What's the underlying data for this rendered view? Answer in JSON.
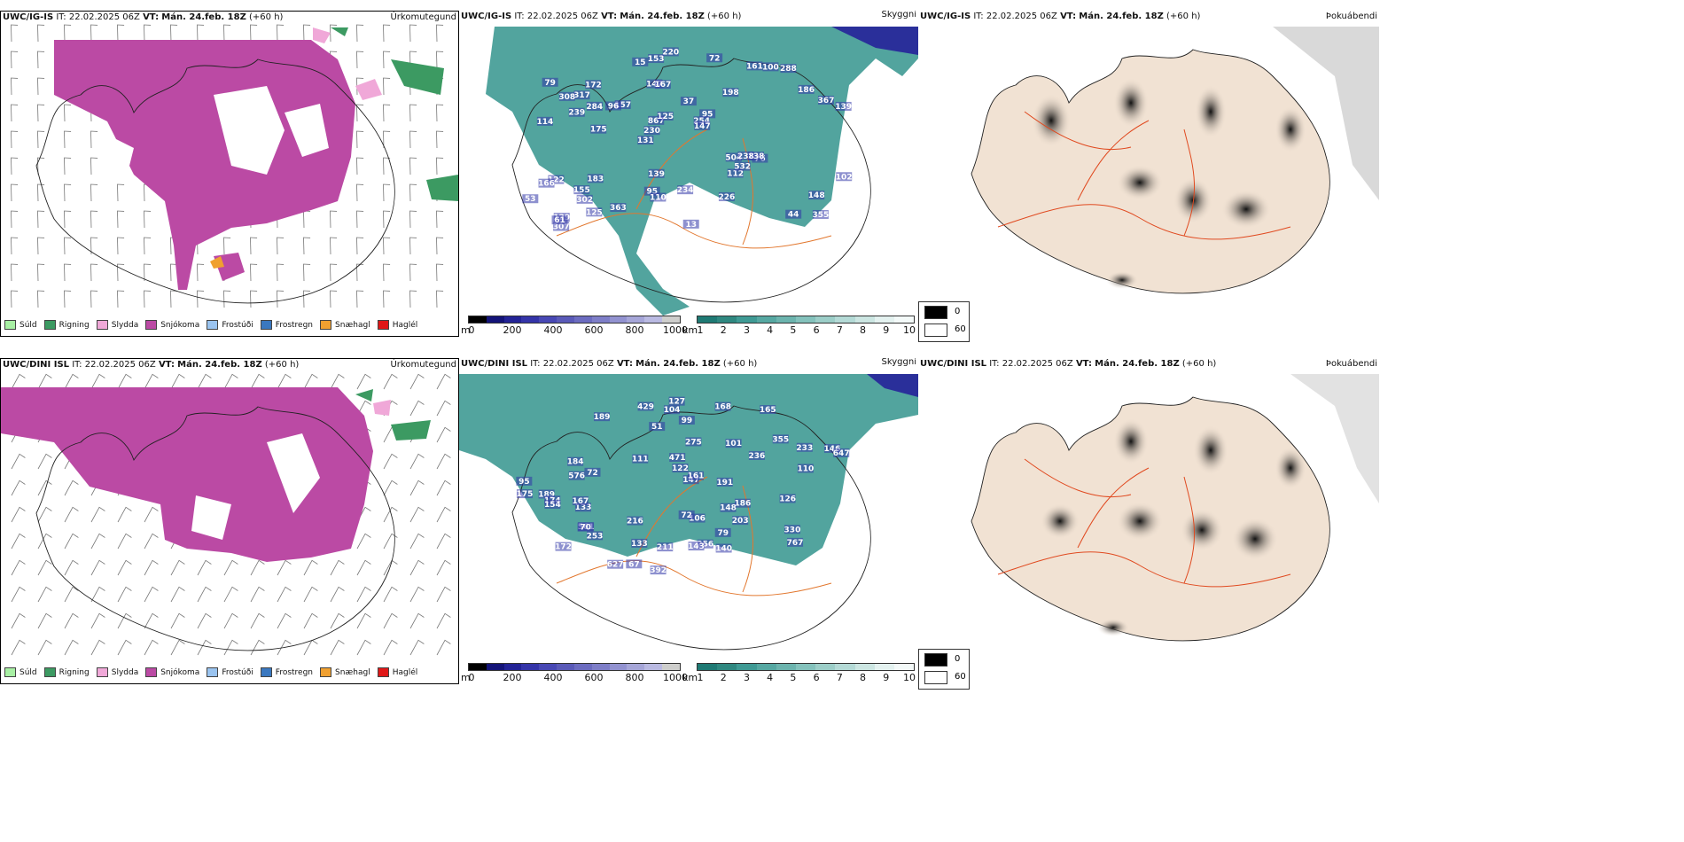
{
  "colors": {
    "precip_snow": "#bb4aa4",
    "precip_rain": "#3c9a62",
    "precip_drizzle": "#a8f0a4",
    "precip_sleet": "#f0a8d8",
    "precip_freezing_drizzle": "#9ac4f0",
    "precip_freezing_rain": "#3a78c0",
    "precip_graupel": "#f0a030",
    "precip_hail": "#e01818",
    "cloud_teal": "#3f9a94",
    "cloud_low_blue": "#3236a8",
    "road_orange": "#e2772e",
    "fog_land": "#f1e2d3"
  },
  "ptype_legend": [
    {
      "label": "Súld",
      "color": "#a8f0a4"
    },
    {
      "label": "Rigning",
      "color": "#3c9a62"
    },
    {
      "label": "Slydda",
      "color": "#f0a8d8"
    },
    {
      "label": "Snjókoma",
      "color": "#bb4aa4"
    },
    {
      "label": "Frostúði",
      "color": "#9ac4f0"
    },
    {
      "label": "Frostregn",
      "color": "#3a78c0"
    },
    {
      "label": "Snæhagl",
      "color": "#f0a030"
    },
    {
      "label": "Haglél",
      "color": "#e01818"
    }
  ],
  "rows": [
    {
      "model": "UWC/IG-IS",
      "it_label": "IT:",
      "it_value": "22.02.2025 06Z",
      "vt_label": "VT:",
      "vt_value": "Mán. 24.feb. 18Z",
      "lead": "(+60 h)",
      "cloud_labels": [
        "355",
        "114",
        "131",
        "198",
        "129",
        "147",
        "37",
        "122",
        "157",
        "302",
        "167",
        "95",
        "76",
        "79",
        "153",
        "504",
        "367",
        "230",
        "95",
        "867",
        "172",
        "161",
        "183",
        "44",
        "148",
        "138",
        "13",
        "96",
        "239",
        "112",
        "125",
        "139",
        "254",
        "110",
        "147",
        "166",
        "186",
        "532",
        "226",
        "155",
        "307",
        "234",
        "288",
        "220",
        "175",
        "317",
        "100",
        "61",
        "72",
        "15",
        "125",
        "102",
        "139",
        "363",
        "238",
        "284",
        "53",
        "308"
      ]
    },
    {
      "model": "UWC/DINI ISL",
      "it_label": "IT:",
      "it_value": "22.02.2025 06Z",
      "vt_label": "VT:",
      "vt_value": "Mán. 24.feb. 18Z",
      "lead": "(+60 h)",
      "cloud_labels": [
        "172",
        "165",
        "189",
        "355",
        "106",
        "72",
        "133",
        "561",
        "233",
        "236",
        "189",
        "127",
        "203",
        "147",
        "392",
        "429",
        "767",
        "95",
        "70",
        "67",
        "140",
        "104",
        "51",
        "161",
        "122",
        "133",
        "174",
        "168",
        "275",
        "186",
        "184",
        "253",
        "256",
        "72",
        "330",
        "154",
        "146",
        "191",
        "101",
        "126",
        "647",
        "99",
        "211",
        "167",
        "175",
        "576",
        "148",
        "143",
        "216",
        "79",
        "111",
        "627",
        "471",
        "110"
      ]
    }
  ],
  "panel_titles": {
    "ptype": "Úrkomutegund",
    "cloud": "Skyggni",
    "fog": "Þokuábendi"
  },
  "cloud_colorbars": {
    "low_unit": "m",
    "low_ticks": [
      "0",
      "200",
      "400",
      "600",
      "800",
      "1000"
    ],
    "low_colors": [
      "#000000",
      "#141478",
      "#232396",
      "#3434a8",
      "#4848b4",
      "#5a5ab8",
      "#6c6cc0",
      "#7e7ec8",
      "#9292d0",
      "#a6a6d8",
      "#babae2",
      "#cececc"
    ],
    "high_unit": "km",
    "high_ticks": [
      "1",
      "2",
      "3",
      "4",
      "5",
      "6",
      "7",
      "8",
      "9",
      "10"
    ],
    "high_colors": [
      "#1f7a74",
      "#2f8880",
      "#3f9a94",
      "#56a8a2",
      "#6cb4ae",
      "#84c2bc",
      "#9ccec8",
      "#b4dad6",
      "#cce6e2",
      "#e4f2f0",
      "#f4faf9"
    ]
  },
  "fog_legend": {
    "black_label": "0",
    "white_label": "60"
  }
}
